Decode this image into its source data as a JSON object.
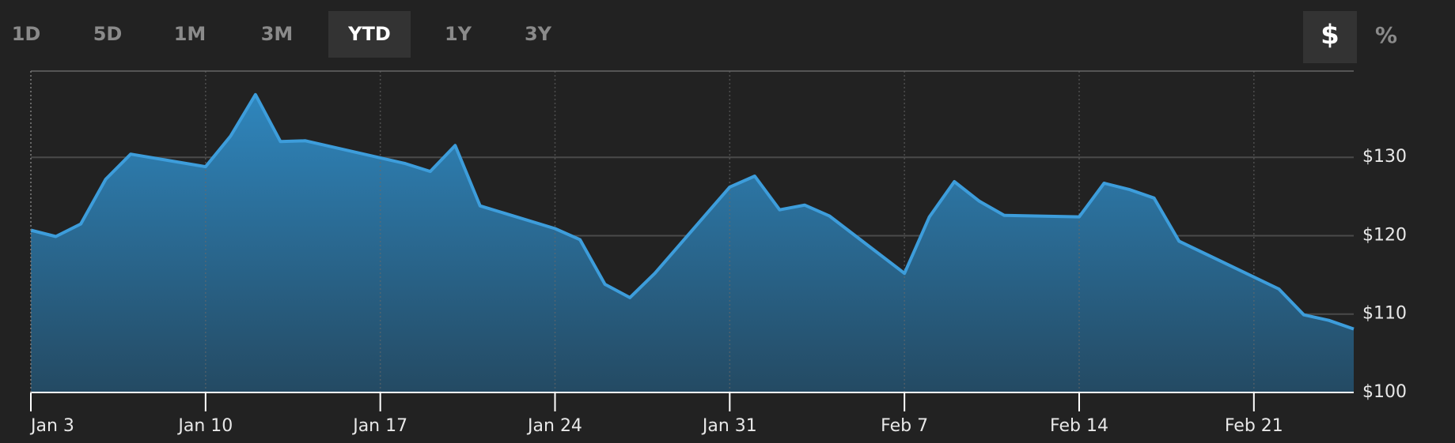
{
  "range_buttons": [
    "1D",
    "5D",
    "1M",
    "3M",
    "YTD",
    "1Y",
    "3Y"
  ],
  "active_range_index": 4,
  "unit_buttons": [
    "$",
    "%"
  ],
  "active_unit_index": 0,
  "chart_data": {
    "type": "area",
    "x": [
      "Jan 3",
      "Jan 4",
      "Jan 5",
      "Jan 6",
      "Jan 7",
      "Jan 10",
      "Jan 11",
      "Jan 12",
      "Jan 13",
      "Jan 14",
      "Jan 18",
      "Jan 19",
      "Jan 20",
      "Jan 21",
      "Jan 24",
      "Jan 25",
      "Jan 26",
      "Jan 27",
      "Jan 28",
      "Jan 31",
      "Feb 1",
      "Feb 2",
      "Feb 3",
      "Feb 4",
      "Feb 7",
      "Feb 8",
      "Feb 9",
      "Feb 10",
      "Feb 11",
      "Feb 14",
      "Feb 15",
      "Feb 16",
      "Feb 17",
      "Feb 18",
      "Feb 22",
      "Feb 23",
      "Feb 24",
      "Feb 25"
    ],
    "values": [
      120.7,
      119.9,
      121.5,
      127.2,
      130.4,
      128.8,
      132.7,
      138.0,
      132.0,
      132.1,
      129.2,
      128.2,
      131.5,
      123.8,
      120.9,
      119.5,
      113.8,
      112.1,
      115.2,
      126.2,
      127.6,
      123.3,
      123.9,
      122.5,
      115.2,
      122.4,
      126.9,
      124.4,
      122.6,
      122.4,
      126.7,
      125.9,
      124.8,
      119.3,
      113.2,
      109.9,
      109.2,
      108.1
    ],
    "color": "#3d9ddb",
    "xlim": [
      "Jan 3",
      "Feb 25"
    ],
    "xticks": [
      "Jan 3",
      "Jan 10",
      "Jan 17",
      "Jan 24",
      "Jan 31",
      "Feb 7",
      "Feb 14",
      "Feb 21"
    ],
    "ylim": [
      100,
      141
    ],
    "yticks": [
      {
        "value": 100,
        "label": "$100"
      },
      {
        "value": 110,
        "label": "$110"
      },
      {
        "value": 120,
        "label": "$120"
      },
      {
        "value": 130,
        "label": "$130"
      }
    ],
    "grid": true
  }
}
